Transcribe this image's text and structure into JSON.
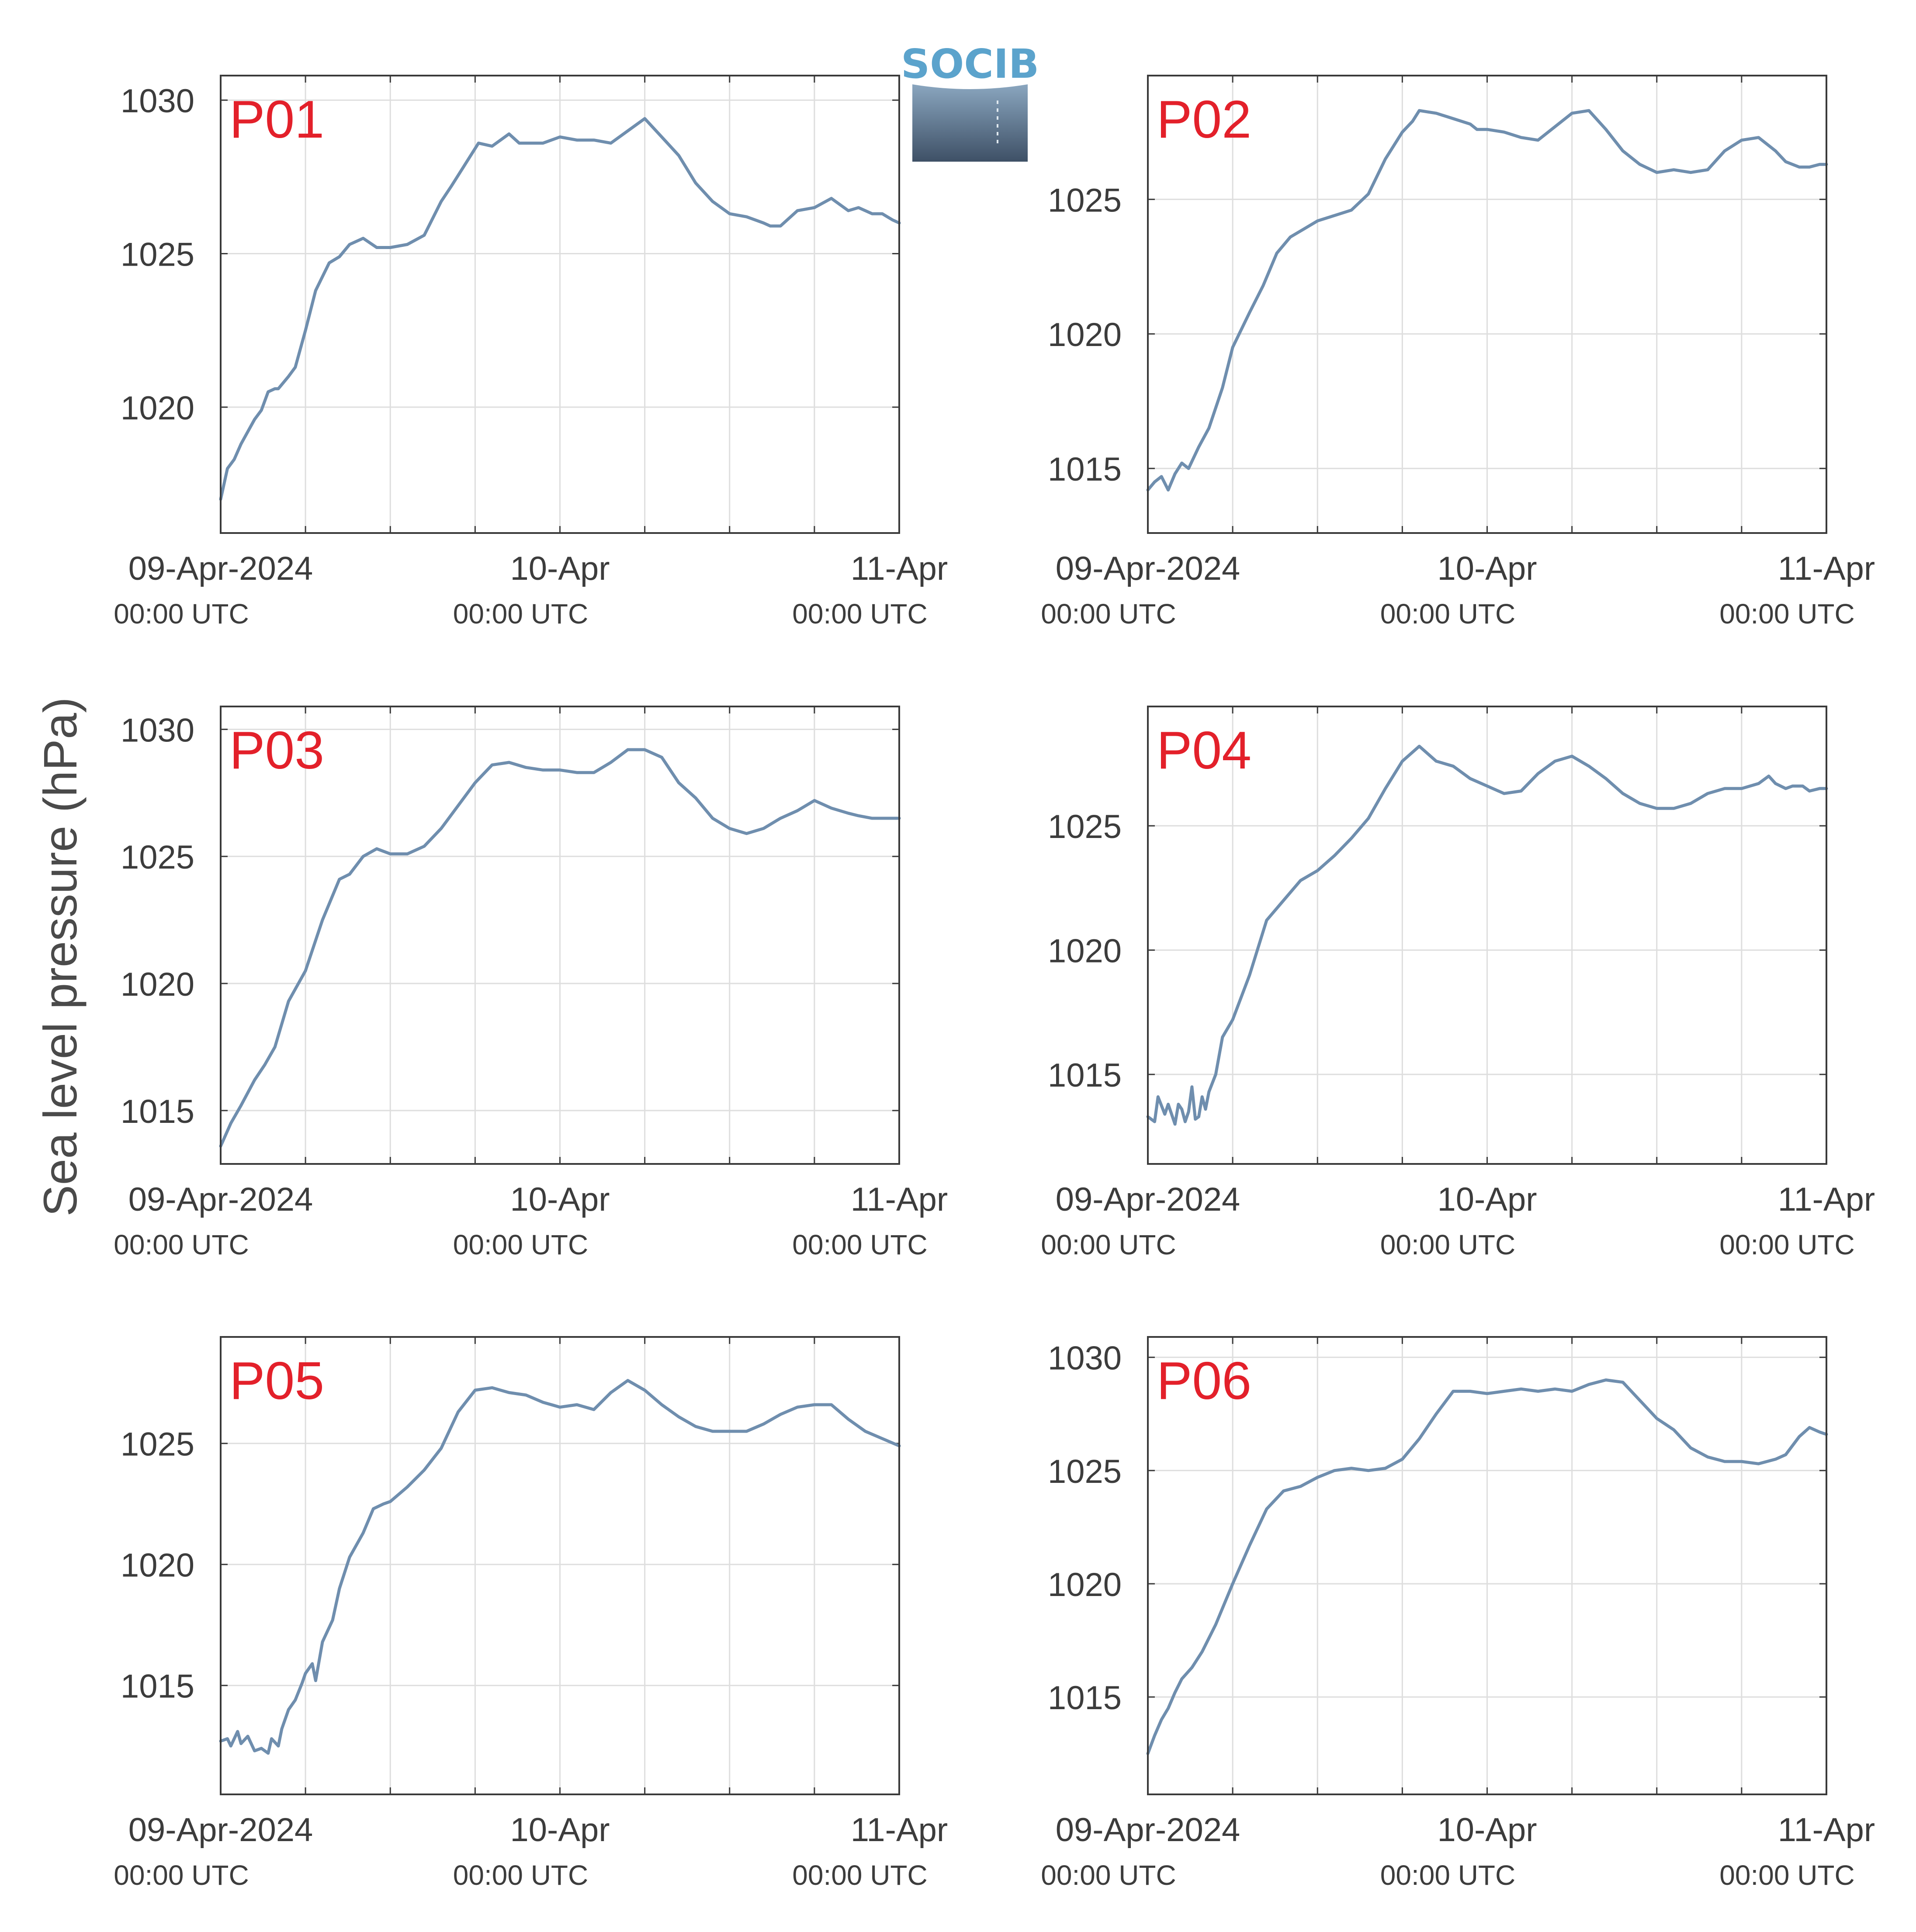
{
  "logo": {
    "text": "SOCIB"
  },
  "chart_data": {
    "type": "line",
    "ylabel": "Sea level pressure (hPa)",
    "x_domain_days": [
      0,
      2
    ],
    "x_ticks": [
      {
        "day": 0,
        "label": "09-Apr-2024",
        "sublabel": "00:00 UTC"
      },
      {
        "day": 1,
        "label": "10-Apr",
        "sublabel": "00:00 UTC"
      },
      {
        "day": 2,
        "label": "11-Apr",
        "sublabel": "00:00 UTC"
      }
    ],
    "grid": true,
    "line_color": "#6f8eae",
    "panel_label_color": "#e3202a",
    "panels": [
      {
        "name": "P01",
        "ylim": [
          1015.9,
          1030.8
        ],
        "yticks": [
          1020,
          1025,
          1030
        ],
        "x": [
          0,
          0.02,
          0.04,
          0.06,
          0.08,
          0.1,
          0.12,
          0.14,
          0.16,
          0.17,
          0.2,
          0.22,
          0.25,
          0.28,
          0.32,
          0.35,
          0.38,
          0.42,
          0.46,
          0.5,
          0.55,
          0.6,
          0.65,
          0.68,
          0.72,
          0.76,
          0.8,
          0.85,
          0.88,
          0.92,
          0.95,
          1.0,
          1.05,
          1.1,
          1.15,
          1.2,
          1.25,
          1.3,
          1.35,
          1.4,
          1.45,
          1.5,
          1.55,
          1.6,
          1.62,
          1.65,
          1.7,
          1.75,
          1.8,
          1.85,
          1.88,
          1.92,
          1.95,
          1.98,
          2.0
        ],
        "y": [
          1017.0,
          1018.0,
          1018.3,
          1018.8,
          1019.2,
          1019.6,
          1019.9,
          1020.5,
          1020.6,
          1020.6,
          1021.0,
          1021.3,
          1022.5,
          1023.8,
          1024.7,
          1024.9,
          1025.3,
          1025.5,
          1025.2,
          1025.2,
          1025.3,
          1025.6,
          1026.7,
          1027.2,
          1027.9,
          1028.6,
          1028.5,
          1028.9,
          1028.6,
          1028.6,
          1028.6,
          1028.8,
          1028.7,
          1028.7,
          1028.6,
          1029.0,
          1029.4,
          1028.8,
          1028.2,
          1027.3,
          1026.7,
          1026.3,
          1026.2,
          1026.0,
          1025.9,
          1025.9,
          1026.4,
          1026.5,
          1026.8,
          1026.4,
          1026.5,
          1026.3,
          1026.3,
          1026.1,
          1026.0
        ]
      },
      {
        "name": "P02",
        "ylim": [
          1012.6,
          1029.6
        ],
        "yticks": [
          1015,
          1020,
          1025
        ],
        "x": [
          0,
          0.02,
          0.04,
          0.06,
          0.08,
          0.1,
          0.12,
          0.15,
          0.18,
          0.22,
          0.25,
          0.3,
          0.34,
          0.38,
          0.42,
          0.46,
          0.5,
          0.55,
          0.6,
          0.65,
          0.7,
          0.75,
          0.78,
          0.8,
          0.85,
          0.9,
          0.95,
          0.97,
          1.0,
          1.05,
          1.1,
          1.15,
          1.2,
          1.25,
          1.3,
          1.35,
          1.4,
          1.45,
          1.5,
          1.55,
          1.6,
          1.65,
          1.7,
          1.75,
          1.8,
          1.85,
          1.88,
          1.92,
          1.95,
          1.98,
          2.0
        ],
        "y": [
          1014.2,
          1014.5,
          1014.7,
          1014.2,
          1014.8,
          1015.2,
          1015.0,
          1015.8,
          1016.5,
          1018.0,
          1019.5,
          1020.8,
          1021.8,
          1023.0,
          1023.6,
          1023.9,
          1024.2,
          1024.4,
          1024.6,
          1025.2,
          1026.5,
          1027.5,
          1027.9,
          1028.3,
          1028.2,
          1028.0,
          1027.8,
          1027.6,
          1027.6,
          1027.5,
          1027.3,
          1027.2,
          1027.7,
          1028.2,
          1028.3,
          1027.6,
          1026.8,
          1026.3,
          1026.0,
          1026.1,
          1026.0,
          1026.1,
          1026.8,
          1027.2,
          1027.3,
          1026.8,
          1026.4,
          1026.2,
          1026.2,
          1026.3,
          1026.3
        ]
      },
      {
        "name": "P03",
        "ylim": [
          1012.9,
          1030.9
        ],
        "yticks": [
          1015,
          1020,
          1025,
          1030
        ],
        "x": [
          0,
          0.03,
          0.06,
          0.1,
          0.13,
          0.16,
          0.2,
          0.25,
          0.3,
          0.35,
          0.38,
          0.42,
          0.46,
          0.5,
          0.55,
          0.6,
          0.65,
          0.7,
          0.75,
          0.8,
          0.85,
          0.9,
          0.95,
          1.0,
          1.05,
          1.1,
          1.15,
          1.2,
          1.25,
          1.3,
          1.35,
          1.4,
          1.45,
          1.5,
          1.55,
          1.6,
          1.65,
          1.7,
          1.75,
          1.8,
          1.85,
          1.88,
          1.92,
          1.95,
          1.98,
          2.0
        ],
        "y": [
          1013.6,
          1014.5,
          1015.2,
          1016.2,
          1016.8,
          1017.5,
          1019.3,
          1020.5,
          1022.5,
          1024.1,
          1024.3,
          1025.0,
          1025.3,
          1025.1,
          1025.1,
          1025.4,
          1026.1,
          1027.0,
          1027.9,
          1028.6,
          1028.7,
          1028.5,
          1028.4,
          1028.4,
          1028.3,
          1028.3,
          1028.7,
          1029.2,
          1029.2,
          1028.9,
          1027.9,
          1027.3,
          1026.5,
          1026.1,
          1025.9,
          1026.1,
          1026.5,
          1026.8,
          1027.2,
          1026.9,
          1026.7,
          1026.6,
          1026.5,
          1026.5,
          1026.5,
          1026.5
        ]
      },
      {
        "name": "P04",
        "ylim": [
          1011.4,
          1029.8
        ],
        "yticks": [
          1015,
          1020,
          1025
        ],
        "x": [
          0,
          0.02,
          0.03,
          0.05,
          0.06,
          0.08,
          0.09,
          0.1,
          0.11,
          0.12,
          0.13,
          0.14,
          0.15,
          0.16,
          0.17,
          0.18,
          0.2,
          0.22,
          0.25,
          0.3,
          0.35,
          0.4,
          0.45,
          0.5,
          0.55,
          0.6,
          0.65,
          0.7,
          0.75,
          0.8,
          0.85,
          0.9,
          0.95,
          1.0,
          1.05,
          1.1,
          1.15,
          1.2,
          1.25,
          1.3,
          1.35,
          1.4,
          1.45,
          1.5,
          1.55,
          1.6,
          1.65,
          1.7,
          1.75,
          1.8,
          1.83,
          1.85,
          1.88,
          1.9,
          1.93,
          1.95,
          1.98,
          2.0
        ],
        "y": [
          1013.3,
          1013.1,
          1014.1,
          1013.4,
          1013.8,
          1013.0,
          1013.8,
          1013.6,
          1013.1,
          1013.5,
          1014.5,
          1013.2,
          1013.3,
          1014.1,
          1013.6,
          1014.3,
          1015.0,
          1016.5,
          1017.2,
          1019.0,
          1021.2,
          1022.0,
          1022.8,
          1023.2,
          1023.8,
          1024.5,
          1025.3,
          1026.5,
          1027.6,
          1028.2,
          1027.6,
          1027.4,
          1026.9,
          1026.6,
          1026.3,
          1026.4,
          1027.1,
          1027.6,
          1027.8,
          1027.4,
          1026.9,
          1026.3,
          1025.9,
          1025.7,
          1025.7,
          1025.9,
          1026.3,
          1026.5,
          1026.5,
          1026.7,
          1027.0,
          1026.7,
          1026.5,
          1026.6,
          1026.6,
          1026.4,
          1026.5,
          1026.5
        ]
      },
      {
        "name": "P05",
        "ylim": [
          1010.5,
          1029.4
        ],
        "yticks": [
          1015,
          1020,
          1025
        ],
        "x": [
          0,
          0.02,
          0.03,
          0.05,
          0.06,
          0.08,
          0.1,
          0.12,
          0.14,
          0.15,
          0.17,
          0.18,
          0.2,
          0.22,
          0.24,
          0.25,
          0.27,
          0.28,
          0.3,
          0.33,
          0.35,
          0.38,
          0.42,
          0.45,
          0.48,
          0.5,
          0.55,
          0.6,
          0.65,
          0.7,
          0.75,
          0.8,
          0.85,
          0.9,
          0.95,
          1.0,
          1.05,
          1.1,
          1.15,
          1.2,
          1.25,
          1.3,
          1.35,
          1.4,
          1.45,
          1.5,
          1.55,
          1.6,
          1.65,
          1.7,
          1.75,
          1.8,
          1.85,
          1.9,
          1.95,
          2.0
        ],
        "y": [
          1012.7,
          1012.8,
          1012.5,
          1013.1,
          1012.6,
          1012.9,
          1012.3,
          1012.4,
          1012.2,
          1012.8,
          1012.5,
          1013.2,
          1014.0,
          1014.4,
          1015.1,
          1015.5,
          1015.9,
          1015.2,
          1016.8,
          1017.7,
          1019.0,
          1020.3,
          1021.3,
          1022.3,
          1022.5,
          1022.6,
          1023.2,
          1023.9,
          1024.8,
          1026.3,
          1027.2,
          1027.3,
          1027.1,
          1027.0,
          1026.7,
          1026.5,
          1026.6,
          1026.4,
          1027.1,
          1027.6,
          1027.2,
          1026.6,
          1026.1,
          1025.7,
          1025.5,
          1025.5,
          1025.5,
          1025.8,
          1026.2,
          1026.5,
          1026.6,
          1026.6,
          1026.0,
          1025.5,
          1025.2,
          1024.9
        ]
      },
      {
        "name": "P06",
        "ylim": [
          1010.7,
          1030.9
        ],
        "yticks": [
          1015,
          1020,
          1025,
          1030
        ],
        "x": [
          0,
          0.02,
          0.04,
          0.06,
          0.08,
          0.1,
          0.13,
          0.16,
          0.2,
          0.25,
          0.3,
          0.35,
          0.4,
          0.45,
          0.5,
          0.55,
          0.6,
          0.65,
          0.7,
          0.75,
          0.8,
          0.85,
          0.9,
          0.95,
          1.0,
          1.05,
          1.1,
          1.15,
          1.2,
          1.25,
          1.3,
          1.35,
          1.4,
          1.45,
          1.5,
          1.55,
          1.6,
          1.65,
          1.7,
          1.75,
          1.8,
          1.85,
          1.88,
          1.92,
          1.95,
          1.98,
          2.0
        ],
        "y": [
          1012.5,
          1013.3,
          1014.0,
          1014.5,
          1015.2,
          1015.8,
          1016.3,
          1017.0,
          1018.2,
          1020.0,
          1021.7,
          1023.3,
          1024.1,
          1024.3,
          1024.7,
          1025.0,
          1025.1,
          1025.0,
          1025.1,
          1025.5,
          1026.4,
          1027.5,
          1028.5,
          1028.5,
          1028.4,
          1028.5,
          1028.6,
          1028.5,
          1028.6,
          1028.5,
          1028.8,
          1029.0,
          1028.9,
          1028.1,
          1027.3,
          1026.8,
          1026.0,
          1025.6,
          1025.4,
          1025.4,
          1025.3,
          1025.5,
          1025.7,
          1026.5,
          1026.9,
          1026.7,
          1026.6
        ]
      }
    ]
  }
}
